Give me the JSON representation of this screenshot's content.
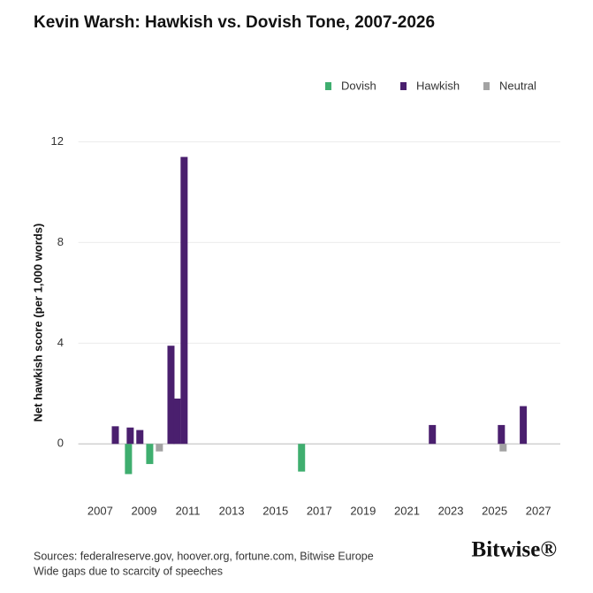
{
  "chart_data": {
    "type": "bar",
    "title": "Kevin Warsh: Hawkish vs. Dovish Tone, 2007-2026",
    "ylabel": "Net hawkish score (per 1,000 words)",
    "source": "Sources: federalreserve.gov, hoover.org, fortune.com, Bitwise Europe",
    "note": "Wide gaps due to scarcity of speeches",
    "logo": "Bitwise®",
    "series": [
      {
        "name": "Dovish",
        "color": "#3fae6f",
        "x": [
          2008.29,
          2009.26,
          2016.19
        ],
        "values": [
          -1.2,
          -0.8,
          -1.1
        ]
      },
      {
        "name": "Hawkish",
        "color": "#4a1f6e",
        "x": [
          2007.69,
          2008.37,
          2008.81,
          2010.23,
          2010.51,
          2010.83,
          2022.16,
          2025.31,
          2026.31
        ],
        "values": [
          0.7,
          0.65,
          0.55,
          3.9,
          1.8,
          11.4,
          0.75,
          0.75,
          1.5
        ]
      },
      {
        "name": "Neutral",
        "color": "#a3a3a3",
        "x": [
          2009.7,
          2025.39
        ],
        "values": [
          -0.3,
          -0.3
        ]
      }
    ],
    "xlim": [
      2006,
      2028
    ],
    "xticks": [
      2007,
      2009,
      2011,
      2013,
      2015,
      2017,
      2019,
      2021,
      2023,
      2025,
      2027
    ],
    "ylim": [
      -1.5,
      13
    ],
    "yticks": [
      0,
      4,
      8,
      12
    ],
    "grid": true,
    "legend": "top-right"
  }
}
